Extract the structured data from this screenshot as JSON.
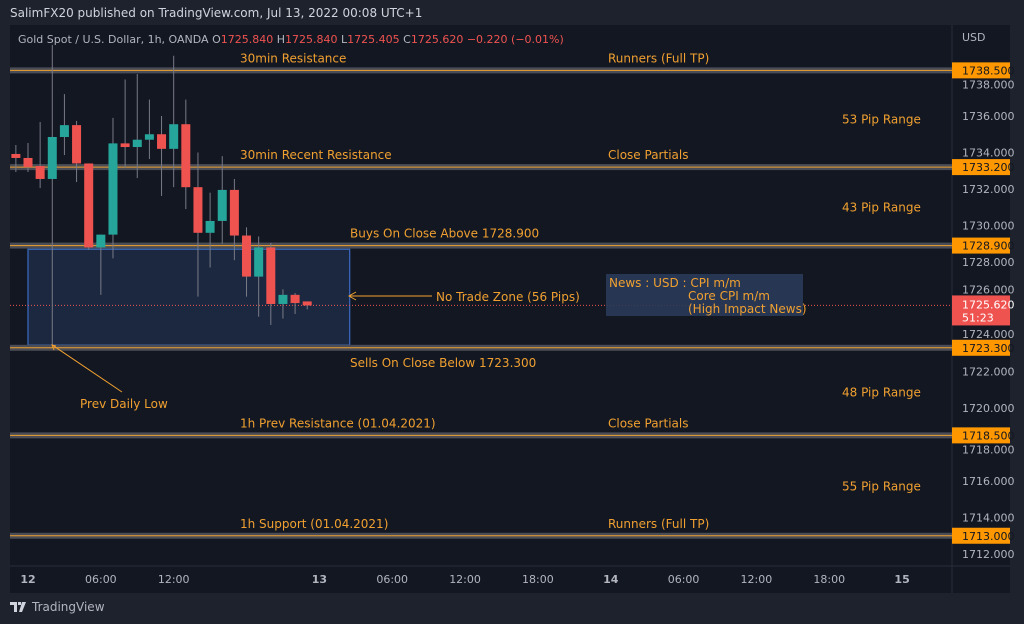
{
  "header": {
    "published": "SalimFX20 published on TradingView.com, Jul 13, 2022 00:08 UTC+1",
    "symbol": "Gold Spot / U.S. Dollar, 1h, OANDA",
    "ohlc": {
      "o_label": "O",
      "o": "1725.840",
      "h_label": "H",
      "h": "1725.840",
      "l_label": "L",
      "l": "1725.405",
      "c_label": "C",
      "c": "1725.620",
      "change": "−0.220 (−0.01%)"
    }
  },
  "footer": {
    "brand": "TradingView"
  },
  "colors": {
    "up": "#26a69a",
    "down": "#ef5350",
    "level": "#f0a030",
    "level_band": "#4a4d55",
    "bg": "#131722",
    "frame": "#1e222d",
    "axis_text": "#b2b5be",
    "zone_fill": "#1e2a44",
    "zone_border": "#3a6bc4"
  },
  "chart_data": {
    "type": "candlestick",
    "currency": "USD",
    "ylim": [
      1711,
      1739.6
    ],
    "y_ticks": [
      1712,
      1714,
      1716,
      1718,
      1720,
      1722,
      1724,
      1726,
      1728,
      1730,
      1732,
      1734,
      1736,
      1738
    ],
    "x_ticks": [
      {
        "label": "12",
        "hour": 0
      },
      {
        "label": "06:00",
        "hour": 6
      },
      {
        "label": "12:00",
        "hour": 12
      },
      {
        "label": "13",
        "hour": 24
      },
      {
        "label": "06:00",
        "hour": 30
      },
      {
        "label": "12:00",
        "hour": 36
      },
      {
        "label": "18:00",
        "hour": 42
      },
      {
        "label": "14",
        "hour": 48
      },
      {
        "label": "06:00",
        "hour": 54
      },
      {
        "label": "12:00",
        "hour": 60
      },
      {
        "label": "18:00",
        "hour": 66
      },
      {
        "label": "15",
        "hour": 72
      }
    ],
    "candles": [
      {
        "hour": -1,
        "o": 1733.92,
        "h": 1734.41,
        "l": 1732.93,
        "c": 1733.7
      },
      {
        "hour": 0,
        "o": 1733.7,
        "h": 1734.52,
        "l": 1732.93,
        "c": 1733.2
      },
      {
        "hour": 1,
        "o": 1733.26,
        "h": 1735.67,
        "l": 1732.05,
        "c": 1732.55
      },
      {
        "hour": 2,
        "o": 1732.55,
        "h": 1739.9,
        "l": 1723.45,
        "c": 1734.85
      },
      {
        "hour": 3,
        "o": 1734.85,
        "h": 1737.2,
        "l": 1733.86,
        "c": 1735.5
      },
      {
        "hour": 4,
        "o": 1735.5,
        "h": 1735.73,
        "l": 1732.38,
        "c": 1733.4
      },
      {
        "hour": 5,
        "o": 1733.4,
        "h": 1733.4,
        "l": 1728.66,
        "c": 1728.8
      },
      {
        "hour": 6,
        "o": 1728.8,
        "h": 1729.5,
        "l": 1726.2,
        "c": 1729.5
      },
      {
        "hour": 7,
        "o": 1729.5,
        "h": 1735.9,
        "l": 1728.2,
        "c": 1734.5
      },
      {
        "hour": 8,
        "o": 1734.5,
        "h": 1738.0,
        "l": 1733.15,
        "c": 1734.3
      },
      {
        "hour": 9,
        "o": 1734.3,
        "h": 1738.3,
        "l": 1732.6,
        "c": 1734.7
      },
      {
        "hour": 10,
        "o": 1734.7,
        "h": 1736.9,
        "l": 1733.64,
        "c": 1735.0
      },
      {
        "hour": 11,
        "o": 1735.0,
        "h": 1736.0,
        "l": 1731.62,
        "c": 1734.2
      },
      {
        "hour": 12,
        "o": 1734.2,
        "h": 1739.3,
        "l": 1732.1,
        "c": 1735.55
      },
      {
        "hour": 13,
        "o": 1735.55,
        "h": 1736.9,
        "l": 1730.9,
        "c": 1732.1
      },
      {
        "hour": 14,
        "o": 1732.1,
        "h": 1734.0,
        "l": 1726.1,
        "c": 1729.6
      },
      {
        "hour": 15,
        "o": 1729.6,
        "h": 1731.8,
        "l": 1727.7,
        "c": 1730.25
      },
      {
        "hour": 16,
        "o": 1730.25,
        "h": 1733.8,
        "l": 1729.0,
        "c": 1731.95
      },
      {
        "hour": 17,
        "o": 1731.95,
        "h": 1732.55,
        "l": 1728.1,
        "c": 1729.45
      },
      {
        "hour": 18,
        "o": 1729.45,
        "h": 1729.9,
        "l": 1726.1,
        "c": 1727.2
      },
      {
        "hour": 19,
        "o": 1727.2,
        "h": 1729.4,
        "l": 1725.0,
        "c": 1728.8
      },
      {
        "hour": 20,
        "o": 1728.8,
        "h": 1729.05,
        "l": 1724.55,
        "c": 1725.7
      },
      {
        "hour": 21,
        "o": 1725.7,
        "h": 1726.5,
        "l": 1724.9,
        "c": 1726.2
      },
      {
        "hour": 22,
        "o": 1726.2,
        "h": 1726.3,
        "l": 1725.15,
        "c": 1725.75
      },
      {
        "hour": 23,
        "o": 1725.84,
        "h": 1725.84,
        "l": 1725.405,
        "c": 1725.62
      }
    ],
    "last_price": {
      "value": 1725.62,
      "label": "1725.620",
      "countdown": "51:23"
    },
    "levels": [
      {
        "price": 1738.5,
        "label": "1738.500",
        "left_text": "30min Resistance",
        "right_text": "Runners (Full TP)"
      },
      {
        "price": 1733.2,
        "label": "1733.200",
        "left_text": "30min Recent Resistance",
        "right_text": "Close Partials"
      },
      {
        "price": 1728.9,
        "label": "1728.900",
        "left_text": "Buys On Close Above 1728.900",
        "right_text": ""
      },
      {
        "price": 1723.3,
        "label": "1723.300",
        "left_text": "Sells On Close Below 1723.300",
        "right_text": ""
      },
      {
        "price": 1718.5,
        "label": "1718.500",
        "left_text": "1h Prev Resistance (01.04.2021)",
        "right_text": "Close Partials"
      },
      {
        "price": 1713.0,
        "label": "1713.000",
        "left_text": "1h Support (01.04.2021)",
        "right_text": "Runners (Full TP)"
      }
    ],
    "pip_ranges": [
      {
        "label": "53 Pip Range",
        "between": [
          1733.2,
          1738.5
        ]
      },
      {
        "label": "43 Pip Range",
        "between": [
          1728.9,
          1733.2
        ]
      },
      {
        "label": "48 Pip Range",
        "between": [
          1718.5,
          1723.3
        ]
      },
      {
        "label": "55 Pip Range",
        "between": [
          1713.0,
          1718.5
        ]
      }
    ],
    "no_trade_zone": {
      "label": "No Trade Zone (56 Pips)",
      "top": 1728.7,
      "bottom": 1723.45,
      "start_hour": 0,
      "end_hour": 26.5
    },
    "prev_daily_low": {
      "label": "Prev Daily Low",
      "price": 1723.45,
      "hour": 2
    },
    "news": {
      "lines": [
        "News : USD : CPI m/m",
        "Core CPI m/m",
        "(High Impact News)"
      ]
    }
  }
}
